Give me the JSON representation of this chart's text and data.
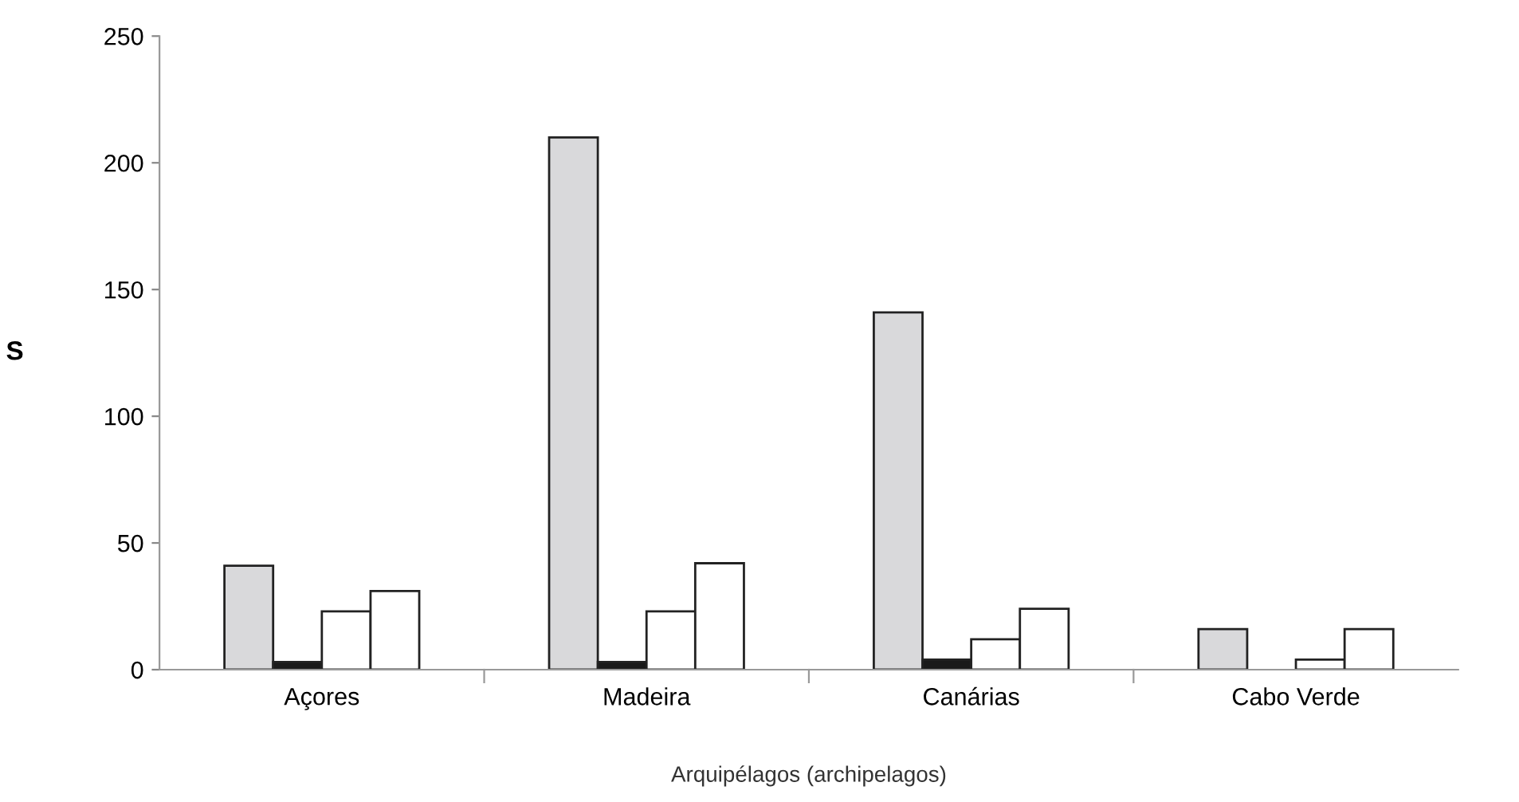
{
  "chart_data": {
    "type": "bar",
    "ylabel": "S",
    "xlabel": "Arquipélagos (archipelagos)",
    "categories": [
      "Açores",
      "Madeira",
      "Canárias",
      "Cabo Verde"
    ],
    "series": [
      {
        "color": "#d9d9db",
        "values": [
          41,
          210,
          141,
          16
        ]
      },
      {
        "color": "#1a1a1a",
        "values": [
          3,
          3,
          4,
          null
        ]
      },
      {
        "color": "#ffffff",
        "values": [
          23,
          23,
          12,
          4
        ]
      },
      {
        "color": "#ffffff",
        "values": [
          31,
          42,
          24,
          16
        ]
      }
    ],
    "ylim": [
      0,
      250
    ],
    "yticks": [
      0,
      50,
      100,
      150,
      200,
      250
    ],
    "grid": false,
    "legend": false
  }
}
